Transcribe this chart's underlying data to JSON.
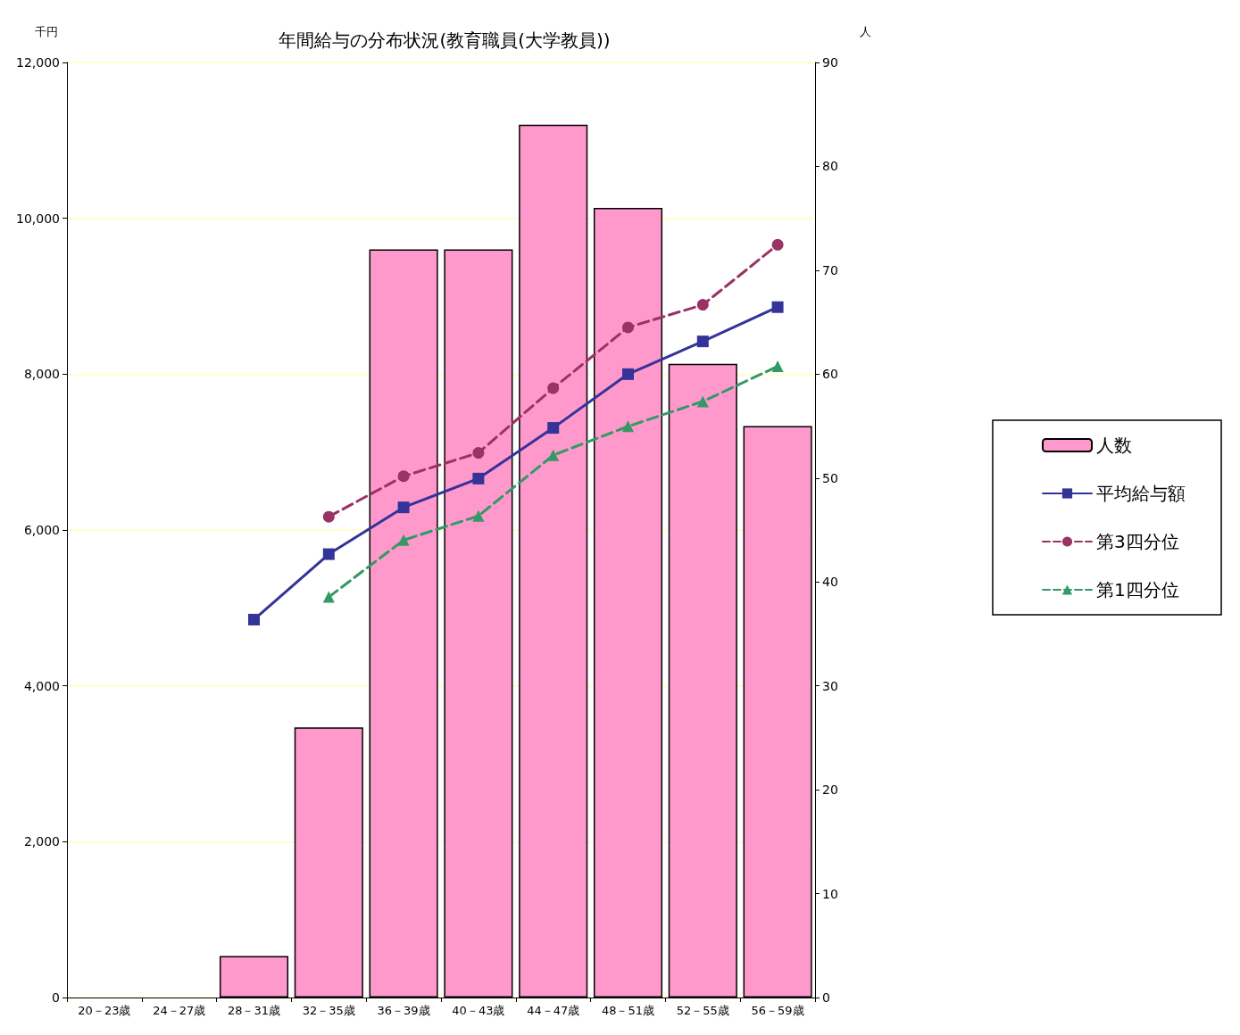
{
  "chart_data": {
    "type": "bar",
    "title": "年間給与の分布状況(教育職員(大学教員))",
    "ylabel": "千円",
    "y2label": "人",
    "categories": [
      "20－23歳",
      "24－27歳",
      "28－31歳",
      "32－35歳",
      "36－39歳",
      "40－43歳",
      "44－47歳",
      "48－51歳",
      "52－55歳",
      "56－59歳"
    ],
    "series": [
      {
        "name": "人数",
        "axis": "y2",
        "color": "#ff99cc",
        "values": [
          null,
          null,
          4,
          26,
          72,
          72,
          84,
          76,
          61,
          55
        ]
      },
      {
        "name": "平均給与額",
        "type": "line",
        "color": "#333399",
        "marker": "square",
        "line_style": "solid",
        "values": [
          null,
          null,
          4850,
          5690,
          6290,
          6660,
          7310,
          8000,
          8420,
          8860
        ]
      },
      {
        "name": "第3四分位",
        "type": "line",
        "color": "#993366",
        "marker": "circle",
        "line_style": "dashed",
        "values": [
          null,
          null,
          null,
          6170,
          6690,
          6990,
          7820,
          8600,
          8890,
          9660
        ]
      },
      {
        "name": "第1四分位",
        "type": "line",
        "color": "#339966",
        "marker": "triangle",
        "line_style": "dashed",
        "values": [
          null,
          null,
          null,
          5140,
          5870,
          6180,
          6960,
          7330,
          7650,
          8100
        ]
      }
    ],
    "ylim": [
      0,
      12000
    ],
    "yticks": [
      0,
      {
        "value": 2000,
        "label": "2,000"
      },
      {
        "value": 4000,
        "label": "4,000"
      },
      {
        "value": 6000,
        "label": "6,000"
      },
      {
        "value": 8000,
        "label": "8,000"
      },
      {
        "value": 10000,
        "label": "10,000"
      },
      {
        "value": 12000,
        "label": "12,000"
      }
    ],
    "y2lim": [
      0,
      90
    ],
    "y2ticks": [
      0,
      10,
      20,
      30,
      40,
      50,
      60,
      70,
      80,
      90
    ],
    "grid": "y",
    "legend": "right"
  }
}
